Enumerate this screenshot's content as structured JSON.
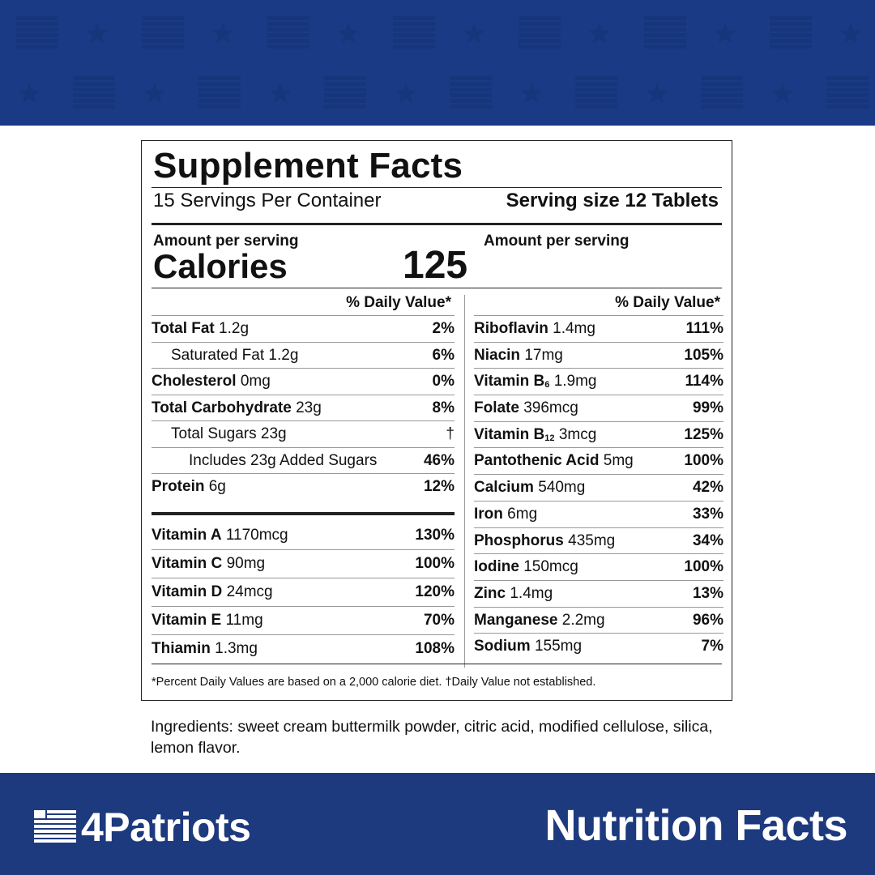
{
  "brand_colors": {
    "band": "#1a3a86",
    "band_bottom": "#1d3a7e",
    "text": "#111111"
  },
  "label": {
    "title": "Supplement Facts",
    "servings": "15 Servings Per Container",
    "serving_size": "Serving size 12 Tablets",
    "amount_left": "Amount per serving",
    "amount_right": "Amount per serving",
    "calories_label": "Calories",
    "calories_value": "125",
    "dv_header_left": "% Daily Value*",
    "dv_header_right": "% Daily Value*",
    "left_rows": [
      {
        "bold": "Total Fat",
        "amount": "1.2g",
        "pct": "2%"
      },
      {
        "bold": "",
        "amount": "Saturated Fat 1.2g",
        "pct": "6%"
      },
      {
        "bold": "Cholesterol",
        "amount": "0mg",
        "pct": "0%"
      },
      {
        "bold": "Total Carbohydrate",
        "amount": "23g",
        "pct": "8%"
      },
      {
        "bold": "",
        "amount": "Total Sugars 23g",
        "pct": "†"
      },
      {
        "bold": "",
        "amount": "Includes 23g Added Sugars",
        "pct": "46%"
      },
      {
        "bold": "Protein",
        "amount": "6g",
        "pct": "12%"
      }
    ],
    "vitamin_rows": [
      {
        "bold": "Vitamin A",
        "amount": "1170mcg",
        "pct": "130%"
      },
      {
        "bold": "Vitamin C",
        "amount": "90mg",
        "pct": "100%"
      },
      {
        "bold": "Vitamin D",
        "amount": "24mcg",
        "pct": "120%"
      },
      {
        "bold": "Vitamin E",
        "amount": "11mg",
        "pct": "70%"
      },
      {
        "bold": "Thiamin",
        "amount": "1.3mg",
        "pct": "108%"
      }
    ],
    "right_rows": [
      {
        "bold": "Riboflavin",
        "sub": "",
        "amount": "1.4mg",
        "pct": "111%"
      },
      {
        "bold": "Niacin",
        "sub": "",
        "amount": "17mg",
        "pct": "105%"
      },
      {
        "bold": "Vitamin B",
        "sub": "6",
        "amount": "1.9mg",
        "pct": "114%"
      },
      {
        "bold": "Folate",
        "sub": "",
        "amount": "396mcg",
        "pct": "99%"
      },
      {
        "bold": "Vitamin B",
        "sub": "12",
        "amount": "3mcg",
        "pct": "125%"
      },
      {
        "bold": "Pantothenic Acid",
        "sub": "",
        "amount": "5mg",
        "pct": "100%"
      },
      {
        "bold": "Calcium",
        "sub": "",
        "amount": "540mg",
        "pct": "42%"
      },
      {
        "bold": "Iron",
        "sub": "",
        "amount": "6mg",
        "pct": "33%"
      },
      {
        "bold": "Phosphorus",
        "sub": "",
        "amount": "435mg",
        "pct": "34%"
      },
      {
        "bold": "Iodine",
        "sub": "",
        "amount": "150mcg",
        "pct": "100%"
      },
      {
        "bold": "Zinc",
        "sub": "",
        "amount": "1.4mg",
        "pct": "13%"
      },
      {
        "bold": "Manganese",
        "sub": "",
        "amount": "2.2mg",
        "pct": "96%"
      },
      {
        "bold": "Sodium",
        "sub": "",
        "amount": "155mg",
        "pct": "7%"
      }
    ],
    "footnote": "*Percent Daily Values are based on a 2,000 calorie diet. †Daily Value not established."
  },
  "ingredients": "Ingredients: sweet cream buttermilk powder, citric acid, modified cellulose, silica, lemon flavor.",
  "footer": {
    "brand": "4Patriots",
    "title": "Nutrition Facts"
  }
}
